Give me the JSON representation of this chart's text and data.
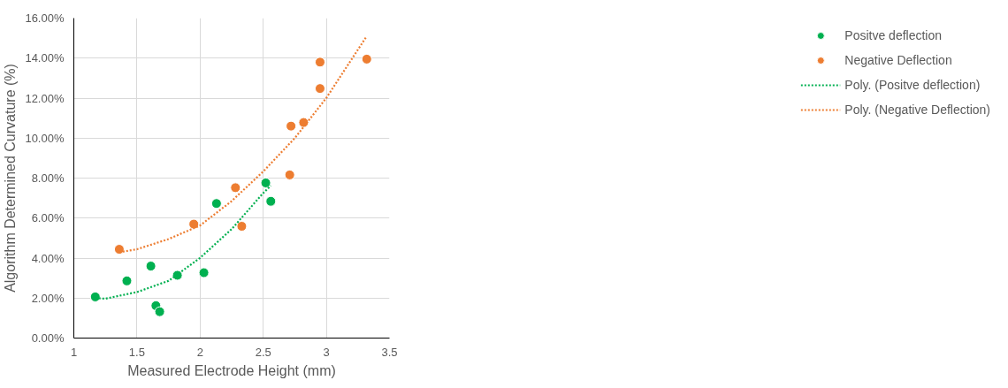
{
  "chart_data": {
    "type": "scatter",
    "xlabel": "Measured Electrode Height (mm)",
    "ylabel": "Algorithm Determined Curvature (%)",
    "xlim": [
      1,
      3.5
    ],
    "xticks": [
      1,
      1.5,
      2,
      2.5,
      3,
      3.5
    ],
    "ylim": [
      0,
      16
    ],
    "yticks": [
      {
        "value": 0,
        "label": "0.00%"
      },
      {
        "value": 2,
        "label": "2.00%"
      },
      {
        "value": 4,
        "label": "4.00%"
      },
      {
        "value": 6,
        "label": "6.00%"
      },
      {
        "value": 8,
        "label": "8.00%"
      },
      {
        "value": 10,
        "label": "10.00%"
      },
      {
        "value": 12,
        "label": "12.00%"
      },
      {
        "value": 14,
        "label": "14.00%"
      },
      {
        "value": 16,
        "label": "16.00%"
      }
    ],
    "grid": true,
    "legend": "right",
    "marker": "circle",
    "series": [
      {
        "name": "Positve deflection",
        "color": "#00b050",
        "x": [
          1.17,
          1.42,
          1.61,
          1.65,
          1.68,
          1.82,
          2.03,
          2.13,
          2.52,
          2.56
        ],
        "values": [
          2.06,
          2.86,
          3.6,
          1.62,
          1.32,
          3.14,
          3.27,
          6.73,
          7.76,
          6.84
        ]
      },
      {
        "name": "Negative Deflection",
        "color": "#ed7d31",
        "x": [
          1.36,
          1.95,
          2.28,
          2.33,
          2.71,
          2.72,
          2.82,
          2.95,
          2.95,
          3.32
        ],
        "values": [
          4.44,
          5.7,
          7.52,
          5.59,
          8.16,
          10.6,
          10.78,
          12.48,
          13.8,
          13.95
        ]
      },
      {
        "name": "Poly. (Positve deflection)",
        "type": "line",
        "line_style": "dotted",
        "marker": "none",
        "color": "#00b050",
        "x": [
          1.17,
          1.25,
          1.5,
          1.75,
          2.0,
          2.25,
          2.5,
          2.56
        ],
        "values": [
          2.0,
          1.97,
          2.3,
          2.86,
          4.01,
          5.45,
          7.25,
          7.62
        ]
      },
      {
        "name": "Poly. (Negative Deflection)",
        "type": "line",
        "line_style": "dotted",
        "marker": "none",
        "color": "#ed7d31",
        "x": [
          1.36,
          1.5,
          1.75,
          2.0,
          2.25,
          2.5,
          2.75,
          3.0,
          3.32
        ],
        "values": [
          4.29,
          4.44,
          4.95,
          5.63,
          6.85,
          8.33,
          10.0,
          12.01,
          15.1
        ]
      }
    ]
  }
}
